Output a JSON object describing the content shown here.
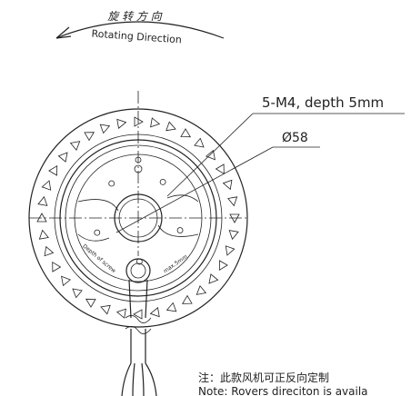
{
  "header": {
    "rotation_cn": "旋 转 方 向",
    "rotation_en": "Rotating Direction"
  },
  "callouts": {
    "holes": "5-M4, depth 5mm",
    "diameter": "Ø58"
  },
  "labels": {
    "depth": "Depth of screw",
    "max": "max.5mm"
  },
  "note": {
    "cn": "注：此款风机可正反向定制",
    "en": "Note: Rovers direciton is availa"
  }
}
